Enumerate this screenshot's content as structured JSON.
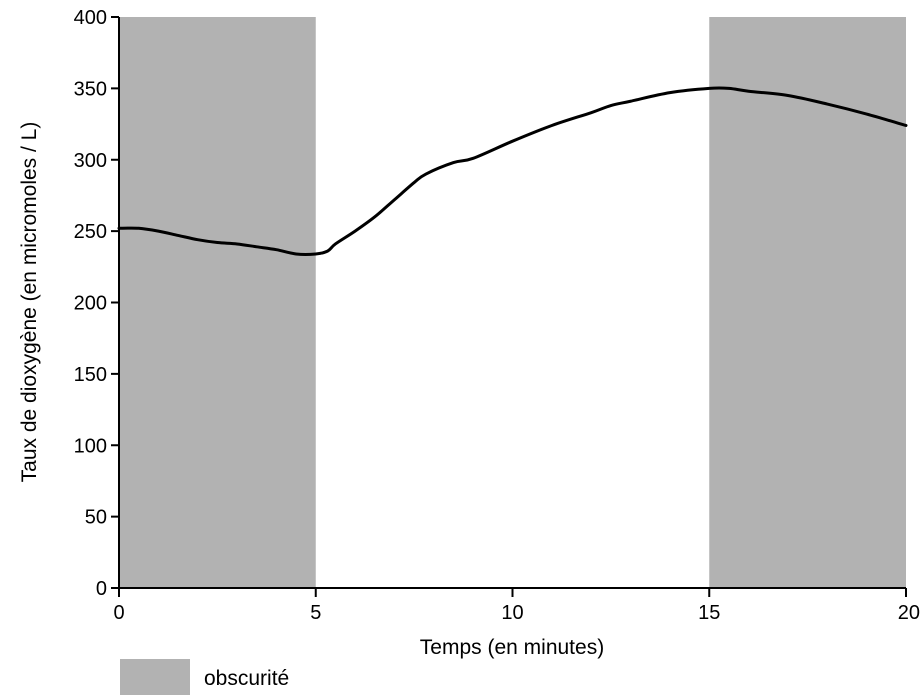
{
  "chart_data": {
    "type": "line",
    "title": "",
    "xlabel": "Temps (en minutes)",
    "ylabel": "Taux de dioxygène (en micromoles / L)",
    "xlim": [
      0,
      20
    ],
    "ylim": [
      0,
      400
    ],
    "xticks": [
      0,
      5,
      10,
      15,
      20
    ],
    "yticks": [
      0,
      50,
      100,
      150,
      200,
      250,
      300,
      350,
      400
    ],
    "grid": false,
    "line_color": "#000000",
    "shade_color": "#b2b2b2",
    "shaded_intervals": [
      {
        "x_start": 0,
        "x_end": 5
      },
      {
        "x_start": 15,
        "x_end": 20
      }
    ],
    "legend": {
      "position": "bottom-left",
      "entries": [
        {
          "label": "obscurité",
          "color": "#b2b2b2"
        }
      ]
    },
    "series": [
      {
        "x": [
          0,
          0.5,
          1,
          1.5,
          2,
          2.5,
          3,
          3.5,
          4,
          4.5,
          5,
          5.3,
          5.5,
          6,
          6.5,
          7,
          7.5,
          7.8,
          8.5,
          9,
          10,
          11,
          12,
          12.5,
          13,
          14,
          15,
          15.5,
          16,
          17,
          18,
          19,
          20
        ],
        "y": [
          252,
          252,
          250,
          247,
          244,
          242,
          241,
          239,
          237,
          234,
          234,
          236,
          241,
          250,
          260,
          272,
          284,
          290,
          298,
          301,
          313,
          324,
          333,
          338,
          341,
          347,
          350,
          350,
          348,
          345,
          339,
          332,
          324
        ]
      }
    ]
  }
}
